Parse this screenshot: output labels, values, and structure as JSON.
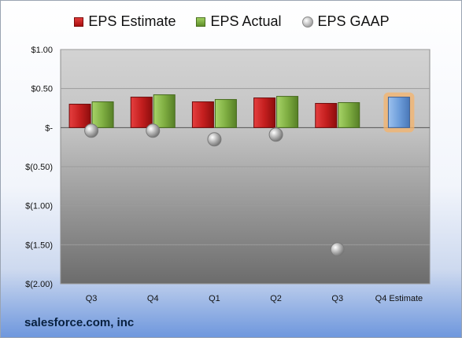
{
  "chart_data": {
    "type": "bar",
    "categories": [
      "Q3",
      "Q4",
      "Q1",
      "Q2",
      "Q3",
      "Q4 Estimate"
    ],
    "series": [
      {
        "name": "EPS Estimate",
        "type": "bar",
        "color": "#c0202a",
        "values": [
          0.3,
          0.39,
          0.33,
          0.38,
          0.31,
          null
        ]
      },
      {
        "name": "EPS Actual",
        "type": "bar",
        "color": "#7aab3e",
        "values": [
          0.33,
          0.42,
          0.36,
          0.4,
          0.32,
          null
        ]
      },
      {
        "name": "Q4 Estimate",
        "type": "bar",
        "color": "#6b9bd8",
        "values": [
          null,
          null,
          null,
          null,
          null,
          0.39
        ]
      },
      {
        "name": "EPS GAAP",
        "type": "scatter",
        "color": "#a6a6a6",
        "values": [
          -0.04,
          -0.04,
          -0.15,
          -0.09,
          -1.56,
          null
        ]
      }
    ],
    "ylim": [
      -2.0,
      1.0
    ],
    "yticks": [
      1.0,
      0.5,
      0.0,
      -0.5,
      -1.0,
      -1.5,
      -2.0
    ],
    "ytick_labels": [
      "$1.00",
      "$0.50",
      "$-",
      "$(0.50)",
      "$(1.00)",
      "$(1.50)",
      "$(2.00)"
    ],
    "legend": [
      "EPS Estimate",
      "EPS Actual",
      "EPS GAAP"
    ],
    "legend_position": "top",
    "grid": true
  },
  "footer": {
    "company": "salesforce.com, inc"
  }
}
